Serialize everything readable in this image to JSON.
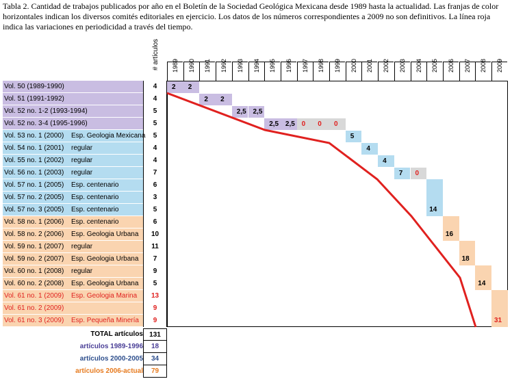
{
  "caption": "Tabla 2. Cantidad de trabajos publicados por año en el Boletín de la Sociedad Geológica Mexicana desde 1989 hasta la actualidad. Las franjas de color horizontales indican los diversos comités editoriales en ejercicio. Los datos de los números correspondientes a 2009 no son definitivos. La línea roja indica las variaciones en periodicidad a través del tiempo.",
  "articles_header": "# artículos",
  "years": [
    "1989",
    "1990",
    "1991",
    "1992",
    "1993",
    "1994",
    "1995",
    "1996",
    "1997",
    "1998",
    "1999",
    "2000",
    "2001",
    "2002",
    "2003",
    "2004",
    "2005",
    "2006",
    "2007",
    "2008",
    "2009"
  ],
  "colors": {
    "purple": "#c9bde2",
    "blue": "#b4dcf0",
    "orange": "#fad4b0",
    "gray": "#d8d8d8",
    "red": "#e0211f"
  },
  "rows": [
    {
      "vol": "Vol. 50 (1989-1990)",
      "esp": "",
      "count": "4",
      "band": "purple",
      "cells": [
        {
          "y": 0,
          "v": "2"
        },
        {
          "y": 1,
          "v": "2"
        }
      ]
    },
    {
      "vol": "Vol. 51 (1991-1992)",
      "esp": "",
      "count": "4",
      "band": "purple",
      "cells": [
        {
          "y": 2,
          "v": "2"
        },
        {
          "y": 3,
          "v": "2"
        }
      ]
    },
    {
      "vol": "Vol. 52 no. 1-2 (1993-1994)",
      "esp": "",
      "count": "5",
      "band": "purple",
      "cells": [
        {
          "y": 4,
          "v": "2,5"
        },
        {
          "y": 5,
          "v": "2,5"
        }
      ]
    },
    {
      "vol": "Vol. 52 no. 3-4 (1995-1996)",
      "esp": "",
      "count": "5",
      "band": "purple",
      "cells": [
        {
          "y": 6,
          "v": "2,5"
        },
        {
          "y": 7,
          "v": "2,5"
        },
        {
          "y": 8,
          "v": "0",
          "gray": true
        },
        {
          "y": 9,
          "v": "0",
          "gray": true
        },
        {
          "y": 10,
          "v": "0",
          "gray": true
        }
      ]
    },
    {
      "vol": "Vol. 53 no. 1 (2000)",
      "esp": "Esp. Geologia Mexicana",
      "count": "5",
      "band": "blue",
      "cells": [
        {
          "y": 11,
          "v": "5"
        }
      ]
    },
    {
      "vol": "Vol. 54 no. 1 (2001)",
      "esp": "regular",
      "count": "4",
      "band": "blue",
      "cells": [
        {
          "y": 12,
          "v": "4"
        }
      ]
    },
    {
      "vol": "Vol. 55 no. 1 (2002)",
      "esp": "regular",
      "count": "4",
      "band": "blue",
      "cells": [
        {
          "y": 13,
          "v": "4"
        }
      ]
    },
    {
      "vol": "Vol. 56 no. 1 (2003)",
      "esp": "regular",
      "count": "7",
      "band": "blue",
      "cells": [
        {
          "y": 14,
          "v": "7"
        },
        {
          "y": 15,
          "v": "0",
          "gray": true
        }
      ]
    },
    {
      "vol": "Vol. 57 no. 1 (2005)",
      "esp": "Esp. centenario",
      "count": "6",
      "band": "blue",
      "cells": []
    },
    {
      "vol": "Vol. 57 no. 2 (2005)",
      "esp": "Esp. centenario",
      "count": "3",
      "band": "blue",
      "cells": []
    },
    {
      "vol": "Vol. 57 no. 3 (2005)",
      "esp": "Esp. centenario",
      "count": "5",
      "band": "blue",
      "cells": []
    },
    {
      "vol": "Vol. 58 no. 1 (2006)",
      "esp": "Esp. centenario",
      "count": "6",
      "band": "orange",
      "cells": []
    },
    {
      "vol": "Vol. 58 no. 2 (2006)",
      "esp": "Esp. Geologia Urbana",
      "count": "10",
      "band": "orange",
      "cells": []
    },
    {
      "vol": "Vol. 59 no. 1 (2007)",
      "esp": "regular",
      "count": "11",
      "band": "orange",
      "cells": []
    },
    {
      "vol": "Vol. 59 no. 2 (2007)",
      "esp": "Esp. Geologia Urbana",
      "count": "7",
      "band": "orange",
      "cells": []
    },
    {
      "vol": "Vol. 60 no. 1 (2008)",
      "esp": "regular",
      "count": "9",
      "band": "orange",
      "cells": []
    },
    {
      "vol": "Vol. 60 no. 2 (2008)",
      "esp": "Esp. Geologia Urbana",
      "count": "5",
      "band": "orange",
      "cells": []
    },
    {
      "vol": "Vol. 61 no. 1 (2009)",
      "esp": "Esp. Geologia Marina",
      "count": "13",
      "band": "orange",
      "red": true,
      "cells": []
    },
    {
      "vol": "Vol. 61 no. 2 (2009)",
      "esp": "",
      "count": "9",
      "band": "orange",
      "red": true,
      "cells": []
    },
    {
      "vol": "Vol. 61 no. 3 (2009)",
      "esp": "Esp. Pequeña Minería",
      "count": "9",
      "band": "orange",
      "red": true,
      "cells": []
    }
  ],
  "spans": [
    {
      "y": 16,
      "from": 8,
      "to": 10,
      "v": "14",
      "color": "blue"
    },
    {
      "y": 17,
      "from": 11,
      "to": 12,
      "v": "16",
      "color": "orange"
    },
    {
      "y": 18,
      "from": 13,
      "to": 14,
      "v": "18",
      "color": "orange"
    },
    {
      "y": 19,
      "from": 15,
      "to": 16,
      "v": "14",
      "color": "orange"
    },
    {
      "y": 20,
      "from": 17,
      "to": 19,
      "v": "31",
      "color": "orange",
      "red": true
    }
  ],
  "totals": [
    {
      "label": "TOTAL artículos",
      "value": "131",
      "color": "#000000"
    },
    {
      "label": "artículos 1989-1996",
      "value": "18",
      "color": "#4a3f97"
    },
    {
      "label": "artículos 2000-2005",
      "value": "34",
      "color": "#2d4e8c"
    },
    {
      "label": "artículos 2006-actual",
      "value": "79",
      "color": "#e67a1e"
    }
  ],
  "periodicity_line": {
    "label": "variaciones en periodicidad"
  }
}
